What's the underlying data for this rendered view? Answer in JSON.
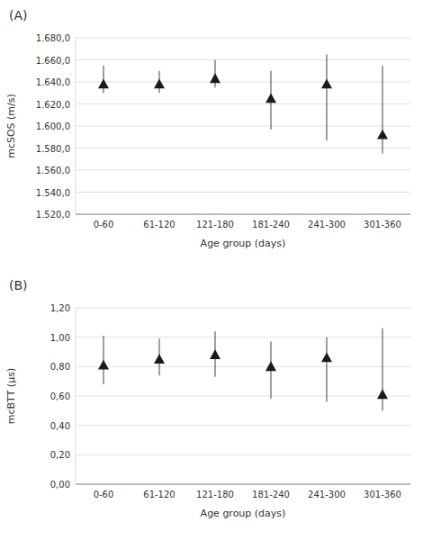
{
  "chart_data": [
    {
      "type": "scatter",
      "title": "(A)",
      "x_label": "Age group (days)",
      "y_label": "mcSOS (m/s)",
      "categories": [
        "0-60",
        "61-120",
        "121-180",
        "181-240",
        "241-300",
        "301-360"
      ],
      "values": [
        1638,
        1638,
        1643,
        1625,
        1638,
        1592
      ],
      "error_lower": [
        8,
        8,
        8,
        28,
        51,
        17
      ],
      "error_upper": [
        17,
        12,
        17,
        25,
        27,
        63
      ],
      "color": "#1a1a1a",
      "marker": "triangle",
      "ylim": [
        1520,
        1680
      ],
      "yticks": [
        {
          "value": 1520,
          "label": "1.520,0"
        },
        {
          "value": 1540,
          "label": "1.540,0"
        },
        {
          "value": 1560,
          "label": "1.560,0"
        },
        {
          "value": 1580,
          "label": "1.580,0"
        },
        {
          "value": 1600,
          "label": "1.600,0"
        },
        {
          "value": 1620,
          "label": "1.620,0"
        },
        {
          "value": 1640,
          "label": "1.640,0"
        },
        {
          "value": 1660,
          "label": "1.660,0"
        },
        {
          "value": 1680,
          "label": "1.680,0"
        }
      ],
      "grid": true
    },
    {
      "type": "scatter",
      "title": "(B)",
      "x_label": "Age group (days)",
      "y_label": "mcBTT (μs)",
      "categories": [
        "0-60",
        "61-120",
        "121-180",
        "181-240",
        "241-300",
        "301-360"
      ],
      "values": [
        0.81,
        0.85,
        0.88,
        0.8,
        0.86,
        0.61
      ],
      "error_lower": [
        0.13,
        0.11,
        0.15,
        0.22,
        0.3,
        0.11
      ],
      "error_upper": [
        0.2,
        0.14,
        0.16,
        0.17,
        0.14,
        0.45
      ],
      "color": "#1a1a1a",
      "marker": "triangle",
      "ylim": [
        0.0,
        1.2
      ],
      "yticks": [
        {
          "value": 0.0,
          "label": "0,00"
        },
        {
          "value": 0.2,
          "label": "0,20"
        },
        {
          "value": 0.4,
          "label": "0,40"
        },
        {
          "value": 0.6,
          "label": "0,60"
        },
        {
          "value": 0.8,
          "label": "0,80"
        },
        {
          "value": 1.0,
          "label": "1,00"
        },
        {
          "value": 1.2,
          "label": "1,20"
        }
      ],
      "grid": true
    }
  ]
}
